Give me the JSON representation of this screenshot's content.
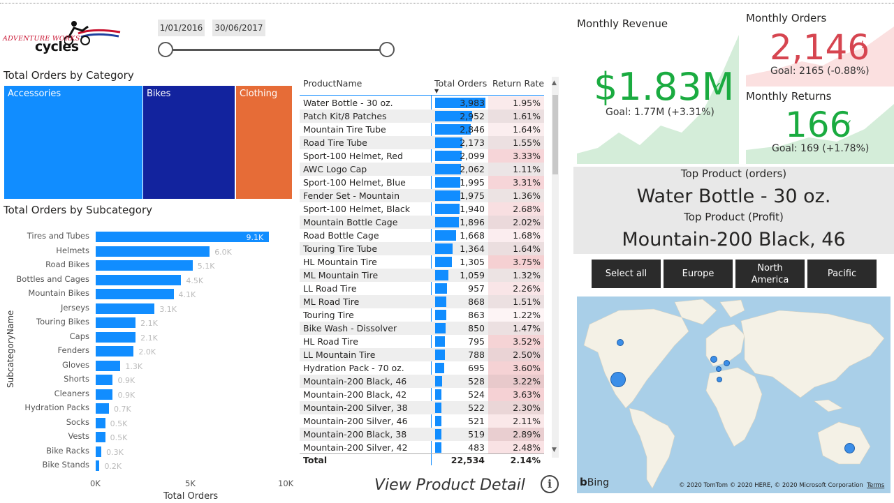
{
  "logo": {
    "line1": "ADVENTURE WORKS",
    "line2": "cycles"
  },
  "date_slicer": {
    "start": "1/01/2016",
    "end": "30/06/2017"
  },
  "category_chart": {
    "title": "Total Orders by Category",
    "items": [
      {
        "label": "Accessories",
        "color": "#118DFF"
      },
      {
        "label": "Bikes",
        "color": "#12239E"
      },
      {
        "label": "Clothing",
        "color": "#E66C37"
      }
    ]
  },
  "subcategory_chart": {
    "title": "Total Orders by Subcategory",
    "ylabel": "SubcategoryName",
    "xlabel": "Total Orders",
    "x_ticks": [
      "0K",
      "5K",
      "10K"
    ]
  },
  "chart_data": {
    "type": "bar",
    "orientation": "horizontal",
    "categories": [
      "Tires and Tubes",
      "Helmets",
      "Road Bikes",
      "Bottles and Cages",
      "Mountain Bikes",
      "Jerseys",
      "Touring Bikes",
      "Caps",
      "Fenders",
      "Gloves",
      "Shorts",
      "Cleaners",
      "Hydration Packs",
      "Socks",
      "Vests",
      "Bike Racks",
      "Bike Stands"
    ],
    "values": [
      9100,
      6000,
      5100,
      4500,
      4100,
      3100,
      2100,
      2100,
      2000,
      1300,
      900,
      900,
      700,
      500,
      500,
      300,
      200
    ],
    "labels": [
      "9.1K",
      "6.0K",
      "5.1K",
      "4.5K",
      "4.1K",
      "3.1K",
      "2.1K",
      "2.1K",
      "2.0K",
      "1.3K",
      "0.9K",
      "0.9K",
      "0.7K",
      "0.5K",
      "0.5K",
      "0.3K",
      "0.2K"
    ],
    "xlim": [
      0,
      10000
    ],
    "color": "#118DFF"
  },
  "product_table": {
    "headers": [
      "ProductName",
      "Total Orders",
      "Return Rate"
    ],
    "rows": [
      [
        "Water Bottle - 30 oz.",
        "3,983",
        "1.95%"
      ],
      [
        "Patch Kit/8 Patches",
        "2,952",
        "1.61%"
      ],
      [
        "Mountain Tire Tube",
        "2,846",
        "1.64%"
      ],
      [
        "Road Tire Tube",
        "2,173",
        "1.55%"
      ],
      [
        "Sport-100 Helmet, Red",
        "2,099",
        "3.33%"
      ],
      [
        "AWC Logo Cap",
        "2,062",
        "1.11%"
      ],
      [
        "Sport-100 Helmet, Blue",
        "1,995",
        "3.31%"
      ],
      [
        "Fender Set - Mountain",
        "1,975",
        "1.36%"
      ],
      [
        "Sport-100 Helmet, Black",
        "1,940",
        "2.68%"
      ],
      [
        "Mountain Bottle Cage",
        "1,896",
        "2.02%"
      ],
      [
        "Road Bottle Cage",
        "1,668",
        "1.68%"
      ],
      [
        "Touring Tire Tube",
        "1,364",
        "1.64%"
      ],
      [
        "HL Mountain Tire",
        "1,305",
        "3.75%"
      ],
      [
        "ML Mountain Tire",
        "1,059",
        "1.32%"
      ],
      [
        "LL Road Tire",
        "957",
        "2.26%"
      ],
      [
        "ML Road Tire",
        "868",
        "1.51%"
      ],
      [
        "Touring Tire",
        "863",
        "1.22%"
      ],
      [
        "Bike Wash - Dissolver",
        "850",
        "1.47%"
      ],
      [
        "HL Road Tire",
        "795",
        "3.52%"
      ],
      [
        "LL Mountain Tire",
        "788",
        "2.50%"
      ],
      [
        "Hydration Pack - 70 oz.",
        "695",
        "3.60%"
      ],
      [
        "Mountain-200 Black, 46",
        "528",
        "3.22%"
      ],
      [
        "Mountain-200 Black, 42",
        "524",
        "3.63%"
      ],
      [
        "Mountain-200 Silver, 38",
        "522",
        "2.30%"
      ],
      [
        "Mountain-200 Silver, 46",
        "521",
        "2.11%"
      ],
      [
        "Mountain-200 Black, 38",
        "519",
        "2.89%"
      ],
      [
        "Mountain-200 Silver, 42",
        "483",
        "2.48%"
      ]
    ],
    "total": [
      "Total",
      "22,534",
      "2.14%"
    ]
  },
  "view_detail": {
    "label": "View Product Detail",
    "info_icon": "i"
  },
  "kpis": {
    "revenue": {
      "title": "Monthly Revenue",
      "value": "$1.83M",
      "goal": "Goal: 1.77M (+3.31%)",
      "color": "#1AAB40"
    },
    "orders": {
      "title": "Monthly Orders",
      "value": "2,146",
      "mark": "!",
      "goal": "Goal: 2165 (-0.88%)",
      "color": "#D64550"
    },
    "returns": {
      "title": "Monthly Returns",
      "value": "166",
      "goal": "Goal: 169 (+1.78%)",
      "color": "#1AAB40"
    }
  },
  "top_product": {
    "orders_label": "Top Product (orders)",
    "orders_value": "Water Bottle - 30 oz.",
    "profit_label": "Top Product (Profit)",
    "profit_value": "Mountain-200 Black, 46"
  },
  "region_buttons": [
    "Select all",
    "Europe",
    "North America",
    "Pacific"
  ],
  "map": {
    "bing": "Bing",
    "attribution": "© 2020 TomTom © 2020 HERE, © 2020 Microsoft Corporation",
    "terms": "Terms"
  }
}
